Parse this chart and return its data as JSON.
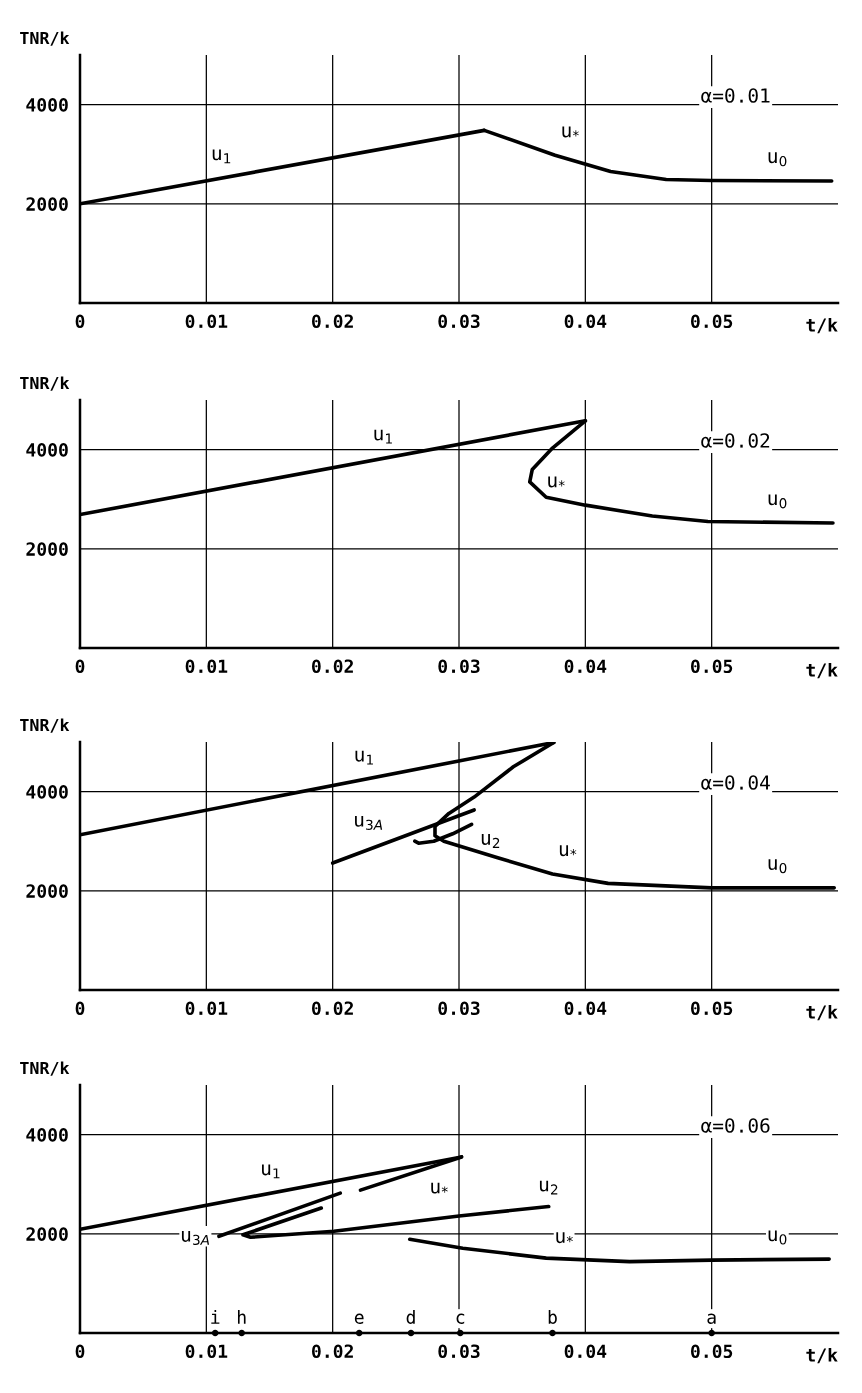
{
  "chart_data": [
    {
      "type": "line",
      "xlabel": "t/k",
      "ylabel": "TNR/k",
      "xlim": [
        0,
        0.06
      ],
      "ylim": [
        0,
        5000
      ],
      "xticks": [
        0,
        0.01,
        0.02,
        0.03,
        0.04,
        0.05
      ],
      "yticks": [
        2000,
        4000
      ],
      "grid": true,
      "marker": "none",
      "line_style": "solid",
      "series": [
        {
          "name": "u$_{1}$",
          "color": "#000000",
          "x": [
            0,
            0.032
          ],
          "values": [
            2000,
            3480
          ]
        },
        {
          "name": "u$_{*}$",
          "color": "#000000",
          "x": [
            0.032,
            0.0376,
            0.042,
            0.0464,
            0.05,
            0.0595
          ],
          "values": [
            3480,
            2980,
            2650,
            2490,
            2470,
            2460
          ]
        }
      ],
      "annotations": [
        "α=0.01",
        "u$_{0}$"
      ]
    },
    {
      "type": "line",
      "xlabel": "t/k",
      "ylabel": "TNR/k",
      "xlim": [
        0,
        0.06
      ],
      "ylim": [
        0,
        5000
      ],
      "xticks": [
        0,
        0.01,
        0.02,
        0.03,
        0.04,
        0.05
      ],
      "yticks": [
        2000,
        4000
      ],
      "grid": true,
      "marker": "none",
      "line_style": "solid",
      "series": [
        {
          "name": "u$_{1}$",
          "color": "#000000",
          "x": [
            0,
            0.04
          ],
          "values": [
            2690,
            4580
          ]
        },
        {
          "name": "u$_{*}$",
          "color": "#000000",
          "x": [
            0.04,
            0.0374,
            0.0358,
            0.0356,
            0.0369,
            0.04,
            0.0453,
            0.0497,
            0.0596
          ],
          "values": [
            4580,
            4030,
            3600,
            3350,
            3040,
            2880,
            2660,
            2550,
            2520
          ]
        }
      ],
      "annotations": [
        "α=0.02",
        "u$_{0}$"
      ]
    },
    {
      "type": "line",
      "xlabel": "t/k",
      "ylabel": "TNR/k",
      "xlim": [
        0,
        0.06
      ],
      "ylim": [
        0,
        5000
      ],
      "xticks": [
        0,
        0.01,
        0.02,
        0.03,
        0.04,
        0.05
      ],
      "yticks": [
        2000,
        4000
      ],
      "grid": true,
      "marker": "none",
      "line_style": "solid",
      "series": [
        {
          "name": "u$_{1}$",
          "color": "#000000",
          "x": [
            0,
            0.0375
          ],
          "values": [
            3130,
            4990
          ]
        },
        {
          "name": "u$_{*}$",
          "color": "#000000",
          "x": [
            0.0375,
            0.0343,
            0.0312,
            0.0292,
            0.0281,
            0.0281,
            0.0288,
            0.033,
            0.0374,
            0.0418,
            0.05,
            0.0597
          ],
          "values": [
            4990,
            4500,
            3890,
            3560,
            3300,
            3110,
            3000,
            2670,
            2340,
            2150,
            2060,
            2060
          ]
        },
        {
          "name": "u$_{3A}$",
          "color": "#000000",
          "x": [
            0.02,
            0.0312
          ],
          "values": [
            2560,
            3630
          ]
        },
        {
          "name": "u$_{2}$",
          "color": "#000000",
          "x": [
            0.031,
            0.0295,
            0.028,
            0.0268,
            0.0265
          ],
          "values": [
            3340,
            3150,
            3000,
            2960,
            3000
          ]
        }
      ],
      "annotations": [
        "α=0.04",
        "u$_{0}$"
      ]
    },
    {
      "type": "line",
      "xlabel": "t/k",
      "ylabel": "TNR/k",
      "xlim": [
        0,
        0.06
      ],
      "ylim": [
        0,
        5000
      ],
      "xticks": [
        0,
        0.01,
        0.02,
        0.03,
        0.04,
        0.05
      ],
      "yticks": [
        2000,
        4000
      ],
      "grid": true,
      "marker": "none",
      "line_style": "solid",
      "series": [
        {
          "name": "u$_{1}$",
          "color": "#000000",
          "x": [
            0,
            0.0302
          ],
          "values": [
            2090,
            3550
          ]
        },
        {
          "name": "u$_{*}$",
          "color": "#000000",
          "x": [
            0.0222,
            0.0302
          ],
          "values": [
            2880,
            3550
          ]
        },
        {
          "name": "u$_{3A}$",
          "color": "#000000",
          "x": [
            0.011,
            0.0206
          ],
          "values": [
            1950,
            2820
          ]
        },
        {
          "name": "u$_{2}$",
          "color": "#000000",
          "x": [
            0.0191,
            0.0129,
            0.0135,
            0.0201,
            0.03,
            0.0371
          ],
          "values": [
            2520,
            1980,
            1930,
            2050,
            2360,
            2550
          ]
        },
        {
          "name": "u$_{*}$",
          "color": "#000000",
          "x": [
            0.0261,
            0.0303,
            0.0369,
            0.0435,
            0.05,
            0.0593
          ],
          "values": [
            1890,
            1710,
            1510,
            1440,
            1470,
            1490
          ]
        },
        {
          "type": "scatter",
          "color": "#000000",
          "marker": "circle",
          "x": [
            0.0107,
            0.0128,
            0.0221,
            0.0262,
            0.0301,
            0.0374,
            0.05
          ],
          "values": [
            0,
            0,
            0,
            0,
            0,
            0,
            0
          ]
        }
      ],
      "annotations": [
        "α=0.06",
        "u$_{0}$",
        {
          "text": "i",
          "x": 0.0107,
          "y": 0
        },
        {
          "text": "h",
          "x": 0.0128,
          "y": 0
        },
        {
          "text": "e",
          "x": 0.0221,
          "y": 0
        },
        {
          "text": "d",
          "x": 0.0262,
          "y": 0
        },
        {
          "text": "c",
          "x": 0.0301,
          "y": 0
        },
        {
          "text": "b",
          "x": 0.0374,
          "y": 0
        },
        {
          "text": "a",
          "x": 0.05,
          "y": 0
        }
      ]
    }
  ]
}
